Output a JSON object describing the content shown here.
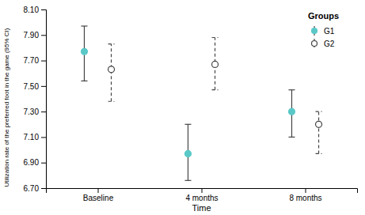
{
  "chart_data": {
    "type": "errorbar",
    "xlabel": "Time",
    "ylabel": "Utilization rate of the preferred foot in the game (95% CI)",
    "categories": [
      "Baseline",
      "4 months",
      "8 months"
    ],
    "series": [
      {
        "name": "G1",
        "color": "#5bc8c8",
        "marker": "circle",
        "line_style": "solid",
        "values": [
          7.77,
          6.97,
          7.3
        ],
        "lower": [
          7.54,
          6.76,
          7.1
        ],
        "upper": [
          7.97,
          7.2,
          7.47
        ]
      },
      {
        "name": "G2",
        "color": "#444444",
        "marker": "open-circle",
        "line_style": "dashed",
        "values": [
          7.63,
          7.67,
          7.2
        ],
        "lower": [
          7.38,
          7.47,
          6.97
        ],
        "upper": [
          7.83,
          7.88,
          7.3
        ]
      }
    ],
    "ylim": [
      6.7,
      8.1
    ],
    "yticks": [
      {
        "value": 6.7,
        "label": "6.70"
      },
      {
        "value": 6.9,
        "label": "6.90"
      },
      {
        "value": 7.1,
        "label": "7.10"
      },
      {
        "value": 7.3,
        "label": "7.30"
      },
      {
        "value": 7.5,
        "label": "7.50"
      },
      {
        "value": 7.7,
        "label": "7.70"
      },
      {
        "value": 7.9,
        "label": "7.90"
      },
      {
        "value": 8.1,
        "label": "8.10"
      }
    ],
    "legend_title": "Groups",
    "legend": "upper right",
    "grid": false
  }
}
